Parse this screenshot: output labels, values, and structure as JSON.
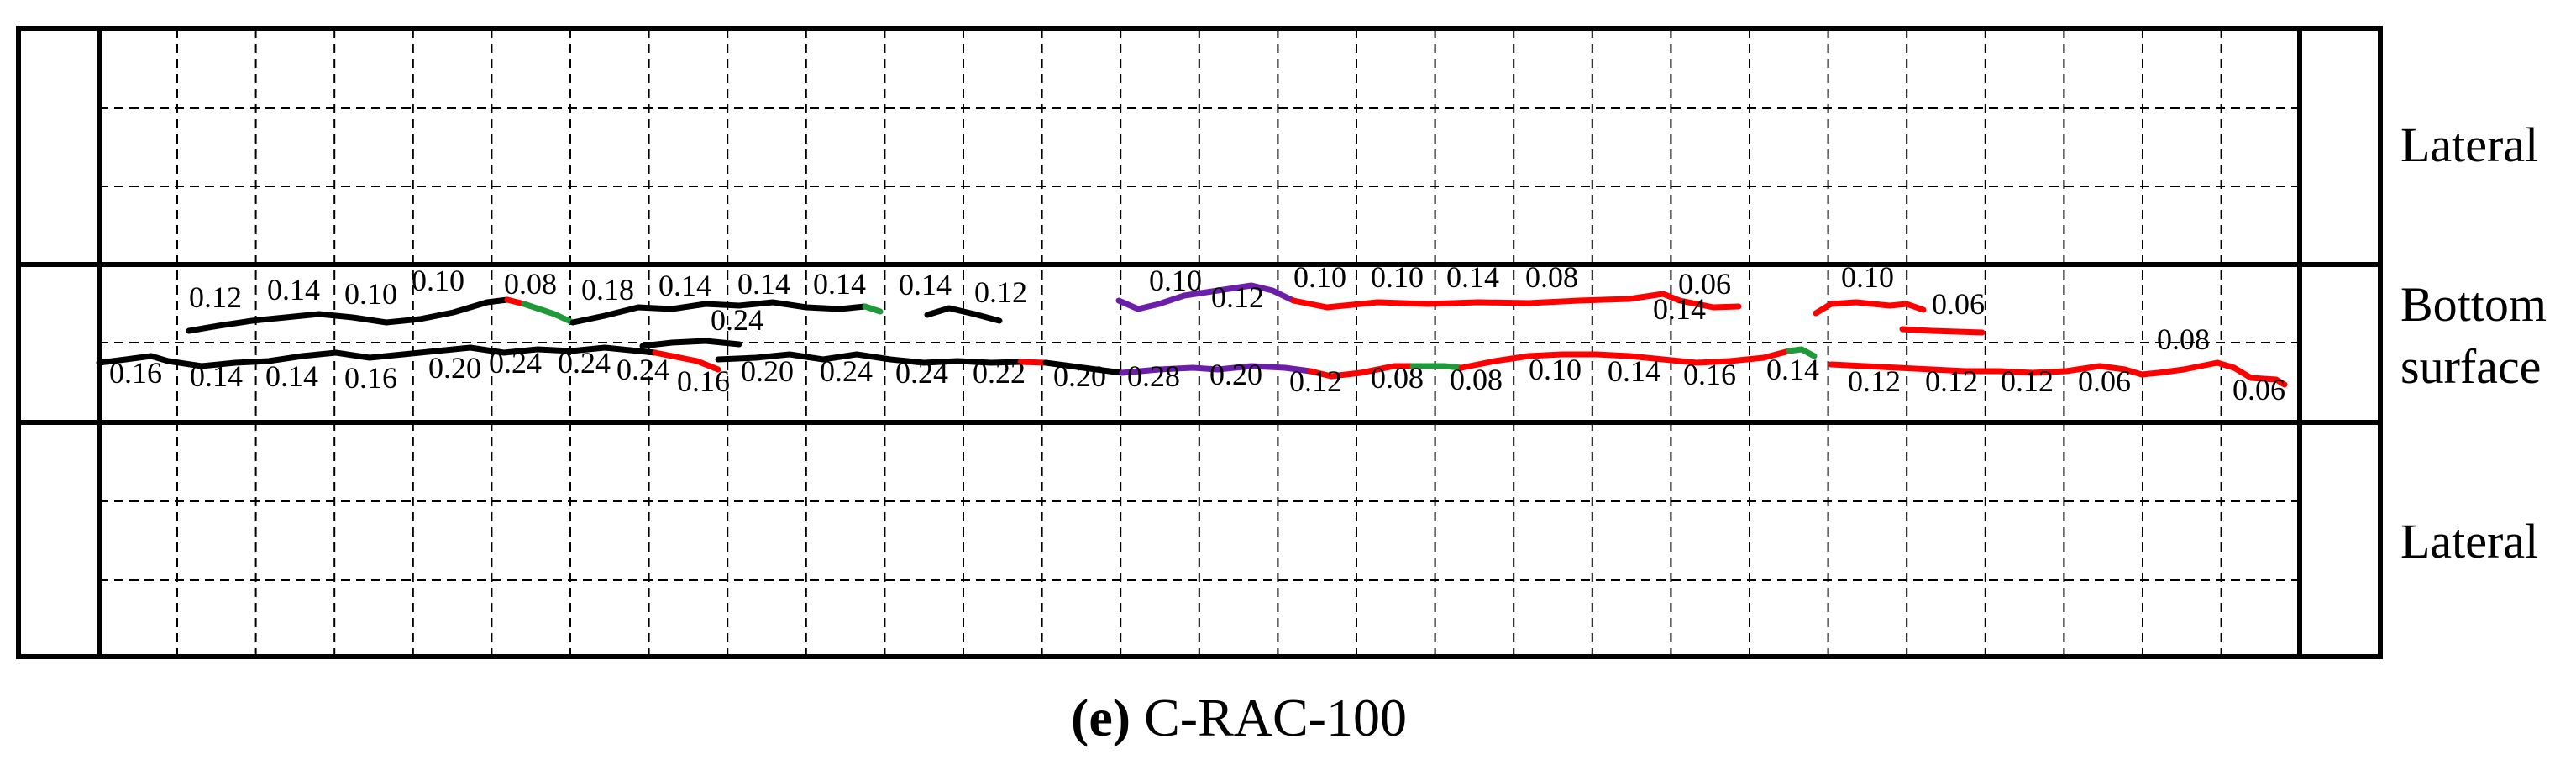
{
  "labels": {
    "top_region": "Lateral",
    "middle_region_line1": "Bottom",
    "middle_region_line2": "surface",
    "bottom_region": "Lateral"
  },
  "caption": {
    "letter": "(e)",
    "specimen": "C-RAC-100"
  },
  "colors": {
    "black": "#000000",
    "red": "#ff0000",
    "green": "#1f9a3a",
    "purple": "#6b1fa8"
  },
  "crack_widths_upper_row": [
    "0.12",
    "0.14",
    "0.10",
    "0.10",
    "0.08",
    "0.18",
    "0.14",
    "0.14",
    "0.14",
    "0.14",
    "0.12",
    "0.24",
    "0.10",
    "0.12",
    "0.10",
    "0.10",
    "0.14",
    "0.08",
    "0.14",
    "0.06",
    "0.10",
    "0.06"
  ],
  "crack_widths_lower_row": [
    "0.16",
    "0.14",
    "0.14",
    "0.16",
    "0.20",
    "0.24",
    "0.24",
    "0.24",
    "0.16",
    "0.20",
    "0.24",
    "0.24",
    "0.22",
    "0.20",
    "0.28",
    "0.20",
    "0.12",
    "0.08",
    "0.08",
    "0.10",
    "0.14",
    "0.16",
    "0.14",
    "0.12",
    "0.12",
    "0.12",
    "0.06",
    "0.08",
    "0.06"
  ]
}
